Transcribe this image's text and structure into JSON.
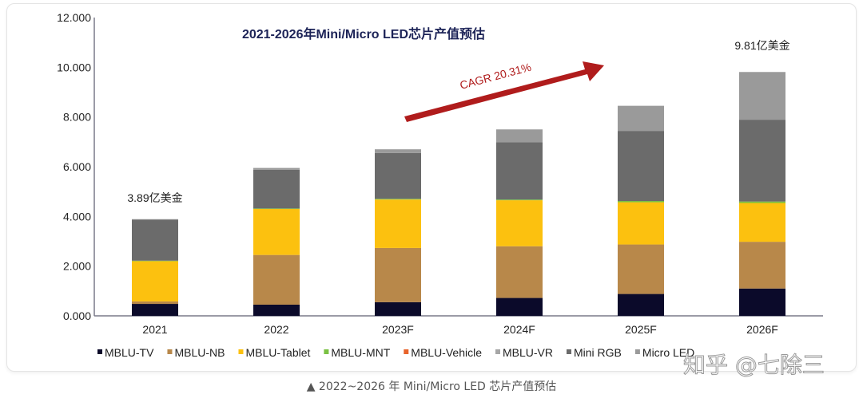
{
  "chart_data": {
    "type": "bar",
    "stacked": true,
    "title": "2021-2026年Mini/Micro LED芯片产值预估",
    "categories": [
      "2021",
      "2022",
      "2023F",
      "2024F",
      "2025F",
      "2026F"
    ],
    "ylim": [
      0,
      12
    ],
    "yticks": [
      "0.000",
      "2.000",
      "4.000",
      "6.000",
      "8.000",
      "10.000",
      "12.000"
    ],
    "grid": false,
    "legend_position": "bottom",
    "series": [
      {
        "name": "MBLU-TV",
        "color": "#0b0a2a",
        "values": [
          0.48,
          0.45,
          0.55,
          0.72,
          0.88,
          1.1
        ]
      },
      {
        "name": "MBLU-NB",
        "color": "#b8884a",
        "values": [
          0.1,
          2.0,
          2.18,
          2.08,
          1.99,
          1.88
        ]
      },
      {
        "name": "MBLU-Tablet",
        "color": "#fcc10f",
        "values": [
          1.62,
          1.85,
          1.95,
          1.85,
          1.7,
          1.56
        ]
      },
      {
        "name": "MBLU-MNT",
        "color": "#7ac143",
        "values": [
          0.02,
          0.02,
          0.03,
          0.03,
          0.05,
          0.06
        ]
      },
      {
        "name": "MBLU-Vehicle",
        "color": "#e8632b",
        "values": [
          0,
          0,
          0,
          0,
          0,
          0
        ]
      },
      {
        "name": "MBLU-VR",
        "color": "#a6a6a6",
        "values": [
          0,
          0,
          0,
          0,
          0,
          0
        ]
      },
      {
        "name": "Mini RGB",
        "color": "#6b6b6b",
        "values": [
          1.65,
          1.56,
          1.84,
          2.3,
          2.82,
          3.29
        ]
      },
      {
        "name": "Micro LED",
        "color": "#9a9a9a",
        "values": [
          0.02,
          0.07,
          0.15,
          0.52,
          1.01,
          1.92
        ]
      }
    ],
    "annotations": [
      {
        "text": "3.89亿美金",
        "category": "2021"
      },
      {
        "text": "9.81亿美金",
        "category": "2026F"
      },
      {
        "text": "CAGR 20.31%",
        "color": "#b01c1c"
      }
    ]
  },
  "caption": "▲  2022~2026 年 Mini/Micro LED 芯片产值预估",
  "watermark": "知乎 @七除三"
}
